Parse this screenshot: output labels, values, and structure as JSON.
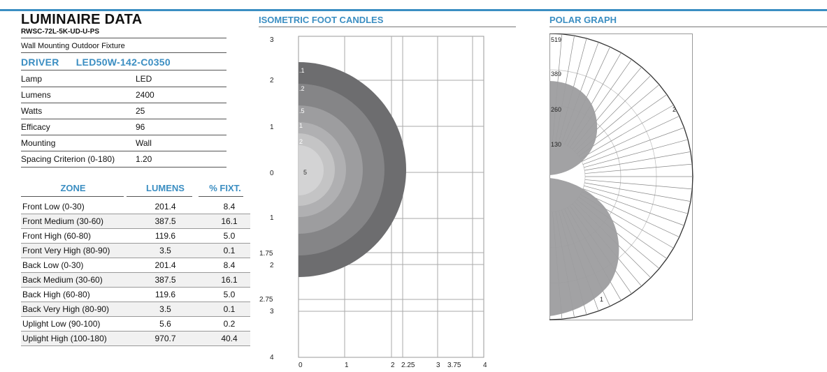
{
  "luminaire": {
    "title": "LUMINAIRE DATA",
    "model": "RWSC-72L-5K-UD-U-PS",
    "description": "Wall Mounting Outdoor Fixture",
    "driver_label": "DRIVER",
    "driver_value": "LED50W-142-C0350",
    "specs": [
      {
        "label": "Lamp",
        "value": "LED"
      },
      {
        "label": "Lumens",
        "value": "2400"
      },
      {
        "label": "Watts",
        "value": "25"
      },
      {
        "label": "Efficacy",
        "value": "96"
      },
      {
        "label": "Mounting",
        "value": "Wall"
      },
      {
        "label": "Spacing Criterion (0-180)",
        "value": "1.20"
      }
    ]
  },
  "zones": {
    "headers": {
      "zone": "ZONE",
      "lumens": "LUMENS",
      "pct": "% FIXT."
    },
    "rows": [
      {
        "zone": "Front Low (0-30)",
        "lumens": "201.4",
        "pct": "8.4"
      },
      {
        "zone": "Front Medium (30-60)",
        "lumens": "387.5",
        "pct": "16.1"
      },
      {
        "zone": "Front High (60-80)",
        "lumens": "119.6",
        "pct": "5.0"
      },
      {
        "zone": "Front Very High (80-90)",
        "lumens": "3.5",
        "pct": "0.1"
      },
      {
        "zone": "Back Low (0-30)",
        "lumens": "201.4",
        "pct": "8.4"
      },
      {
        "zone": "Back Medium (30-60)",
        "lumens": "387.5",
        "pct": "16.1"
      },
      {
        "zone": "Back High (60-80)",
        "lumens": "119.6",
        "pct": "5.0"
      },
      {
        "zone": "Back Very High (80-90)",
        "lumens": "3.5",
        "pct": "0.1"
      },
      {
        "zone": "Uplight Low (90-100)",
        "lumens": "5.6",
        "pct": "0.2"
      },
      {
        "zone": "Uplight High (100-180)",
        "lumens": "970.7",
        "pct": "40.4"
      }
    ]
  },
  "isometric": {
    "title": "ISOMETRIC FOOT CANDLES",
    "y_labels": [
      "3",
      "2",
      "1",
      "0",
      "1",
      "1.75",
      "2",
      "2.75",
      "3",
      "4"
    ],
    "x_labels": [
      "0",
      "1",
      "2",
      "2.25",
      "3",
      "3.75",
      "4"
    ],
    "contour_labels": [
      ".1",
      ".2",
      ".5",
      "1",
      "2",
      "5"
    ]
  },
  "polar": {
    "title": "POLAR GRAPH",
    "radial_labels": [
      "519",
      "389",
      "260",
      "130"
    ],
    "curve_labels": [
      "2",
      "1"
    ]
  }
}
